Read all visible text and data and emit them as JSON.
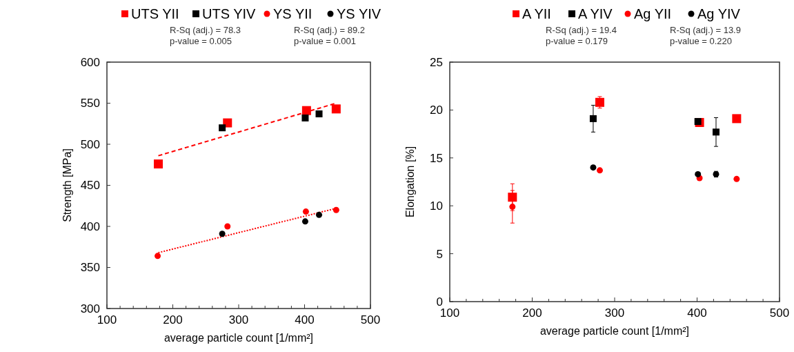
{
  "chart_data": [
    {
      "type": "scatter",
      "xlabel": "average particle count [1/mm²]",
      "ylabel": "Strength [MPa]",
      "legend": "top",
      "grid": false,
      "annotations": [
        "R-Sq (adj.) = 78.3",
        "p-value = 0.005",
        "R-Sq (adj.) = 89.2",
        "p-value = 0.001"
      ],
      "xlim": [
        100,
        500
      ],
      "ylim": [
        300,
        600
      ],
      "xticks": [
        100,
        {
          "value": 120,
          "label": null
        },
        {
          "value": 140,
          "label": null
        },
        {
          "value": 160,
          "label": null
        },
        {
          "value": 180,
          "label": null
        },
        200,
        {
          "value": 220,
          "label": null
        },
        {
          "value": 240,
          "label": null
        },
        {
          "value": 260,
          "label": null
        },
        {
          "value": 280,
          "label": null
        },
        300,
        {
          "value": 320,
          "label": null
        },
        {
          "value": 340,
          "label": null
        },
        {
          "value": 360,
          "label": null
        },
        {
          "value": 380,
          "label": null
        },
        400,
        {
          "value": 420,
          "label": null
        },
        {
          "value": 440,
          "label": null
        },
        {
          "value": 460,
          "label": null
        },
        {
          "value": 480,
          "label": null
        },
        500
      ],
      "yticks": [
        300,
        350,
        400,
        450,
        500,
        550,
        600
      ],
      "series": [
        {
          "name": "UTS YII",
          "marker": "square",
          "color": "#ff0000",
          "x": [
            178,
            283,
            403,
            448
          ],
          "values": [
            476,
            526,
            541,
            543
          ],
          "errors": [
            4,
            null,
            null,
            null
          ]
        },
        {
          "name": "UTS YIV",
          "marker": "square",
          "color": "#000000",
          "x": [
            275,
            401,
            422
          ],
          "values": [
            520,
            532,
            537
          ]
        },
        {
          "name": "YS YII",
          "marker": "circle",
          "color": "#ff0000",
          "x": [
            177,
            283,
            402,
            448
          ],
          "values": [
            364,
            400,
            418,
            420
          ]
        },
        {
          "name": "YS YIV",
          "marker": "circle",
          "color": "#000000",
          "x": [
            275,
            401,
            422
          ],
          "values": [
            391,
            406,
            414
          ]
        },
        {
          "type": "line",
          "line_style": "dashed",
          "color": "#ff0000",
          "x": [
            178,
            448
          ],
          "values": [
            486,
            550
          ]
        },
        {
          "type": "line",
          "line_style": "dotted",
          "color": "#ff0000",
          "x": [
            178,
            448
          ],
          "values": [
            368,
            422
          ]
        }
      ]
    },
    {
      "type": "scatter",
      "xlabel": "average particle count [1/mm²]",
      "ylabel": "Elongation [%]",
      "legend": "top",
      "grid": false,
      "annotations": [
        "R-Sq (adj.) = 19.4",
        "p-value = 0.179",
        "R-Sq (adj.) = 13.9",
        "p-value = 0.220"
      ],
      "xlim": [
        100,
        500
      ],
      "ylim": [
        0,
        25
      ],
      "xticks": [
        100,
        {
          "value": 120,
          "label": null
        },
        {
          "value": 140,
          "label": null
        },
        {
          "value": 160,
          "label": null
        },
        {
          "value": 180,
          "label": null
        },
        200,
        {
          "value": 220,
          "label": null
        },
        {
          "value": 240,
          "label": null
        },
        {
          "value": 260,
          "label": null
        },
        {
          "value": 280,
          "label": null
        },
        300,
        {
          "value": 320,
          "label": null
        },
        {
          "value": 340,
          "label": null
        },
        {
          "value": 360,
          "label": null
        },
        {
          "value": 380,
          "label": null
        },
        400,
        {
          "value": 420,
          "label": null
        },
        {
          "value": 440,
          "label": null
        },
        {
          "value": 460,
          "label": null
        },
        {
          "value": 480,
          "label": null
        },
        500
      ],
      "yticks": [
        0,
        5,
        10,
        15,
        20,
        25
      ],
      "series": [
        {
          "name": "A YII",
          "marker": "square",
          "color": "#ff0000",
          "x": [
            176,
            282,
            403,
            448
          ],
          "values": [
            10.9,
            20.8,
            18.7,
            19.1
          ],
          "errors": [
            1.4,
            0.6,
            0.4,
            null
          ]
        },
        {
          "name": "A YIV",
          "marker": "square",
          "color": "#000000",
          "x": [
            274,
            401,
            423
          ],
          "values": [
            19.1,
            18.8,
            17.7
          ],
          "errors": [
            1.4,
            0.3,
            1.5
          ]
        },
        {
          "name": "Ag YII",
          "marker": "circle",
          "color": "#ff0000",
          "x": [
            176,
            282,
            403,
            448
          ],
          "values": [
            9.9,
            13.7,
            12.9,
            12.8
          ],
          "errors": [
            1.7,
            null,
            null,
            null
          ]
        },
        {
          "name": "Ag YIV",
          "marker": "circle",
          "color": "#000000",
          "x": [
            274,
            401,
            423
          ],
          "values": [
            14.0,
            13.3,
            13.3
          ],
          "errors": [
            null,
            null,
            0.3
          ]
        }
      ]
    }
  ]
}
